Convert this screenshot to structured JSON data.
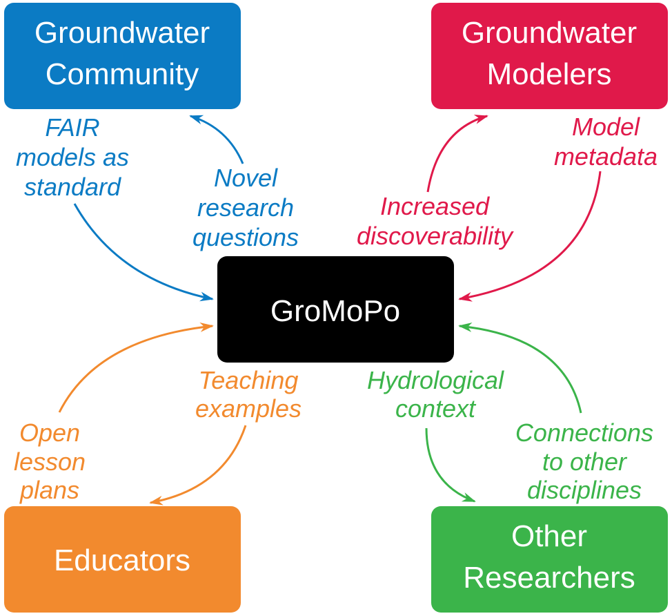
{
  "colors": {
    "community": "#0b7bc4",
    "modelers": "#e0194a",
    "educators": "#f28a2e",
    "researchers": "#3bb44a",
    "center": "#000000",
    "node_text": "#ffffff"
  },
  "nodes": {
    "center": {
      "label": "GroMoPo"
    },
    "community": {
      "line1": "Groundwater",
      "line2": "Community"
    },
    "modelers": {
      "line1": "Groundwater",
      "line2": "Modelers"
    },
    "educators": {
      "label": "Educators"
    },
    "researchers": {
      "line1": "Other",
      "line2": "Researchers"
    }
  },
  "edges": {
    "community_to_center": {
      "lines": [
        "FAIR",
        "models as",
        "standard"
      ]
    },
    "center_to_community": {
      "lines": [
        "Novel",
        "research",
        "questions"
      ]
    },
    "center_to_modelers": {
      "lines": [
        "Increased",
        "discoverability"
      ]
    },
    "modelers_to_center": {
      "lines": [
        "Model",
        "metadata"
      ]
    },
    "educators_to_center": {
      "lines": [
        "Open",
        "lesson",
        "plans"
      ]
    },
    "center_to_educators": {
      "lines": [
        "Teaching",
        "examples"
      ]
    },
    "center_to_researchers": {
      "lines": [
        "Hydrological",
        "context"
      ]
    },
    "researchers_to_center": {
      "lines": [
        "Connections",
        "to other",
        "disciplines"
      ]
    }
  }
}
